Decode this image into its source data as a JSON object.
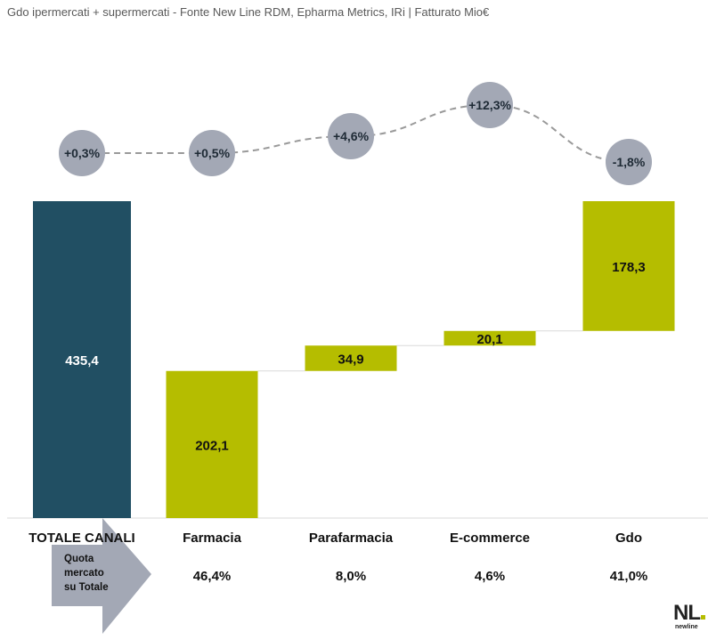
{
  "header": {
    "title": "Gdo ipermercati + supermercati - Fonte New Line RDM, Epharma Metrics, IRi | Fatturato Mio€"
  },
  "chart_data": {
    "type": "bar",
    "subtype": "waterfall",
    "unit": "Fatturato Mio€",
    "categories": [
      "TOTALE CANALI",
      "Farmacia",
      "Parafarmacia",
      "E-commerce",
      "Gdo"
    ],
    "values": [
      435.4,
      202.1,
      34.9,
      20.1,
      178.3
    ],
    "value_labels": [
      "435,4",
      "202,1",
      "34,9",
      "20,1",
      "178,3"
    ],
    "growth": [
      0.3,
      0.5,
      4.6,
      12.3,
      -1.8
    ],
    "growth_labels": [
      "+0,3%",
      "+0,5%",
      "+4,6%",
      "+12,3%",
      "-1,8%"
    ],
    "quota_label": "Quota mercato su Totale",
    "quota_label_lines": [
      "Quota",
      "mercato",
      "su Totale"
    ],
    "quota": [
      46.4,
      8.0,
      4.6,
      41.0
    ],
    "quota_labels": [
      "46,4%",
      "8,0%",
      "4,6%",
      "41,0%"
    ],
    "colors": {
      "total_bar": "#214f63",
      "channel_bar": "#b5bd00",
      "growth_circle": "#a3a8b5",
      "growth_line": "#9a9a9a",
      "arrow": "#a3a8b5"
    }
  },
  "logo": {
    "text": "NL",
    "sub": "newline"
  }
}
